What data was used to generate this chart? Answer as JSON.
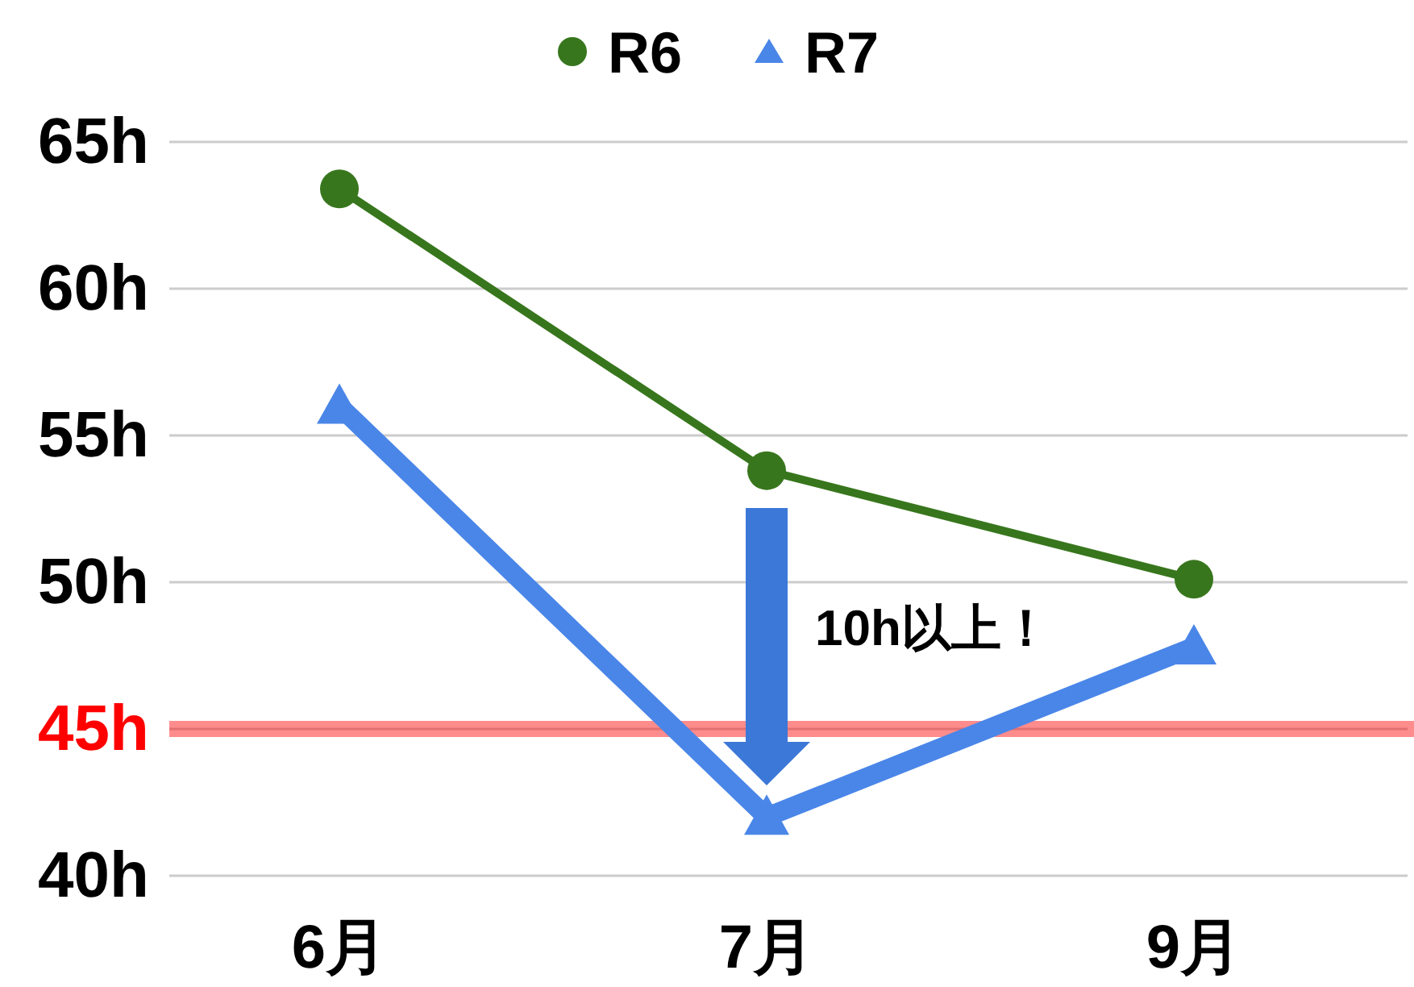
{
  "chart_data": {
    "type": "line",
    "categories": [
      "6月",
      "7月",
      "9月"
    ],
    "series": [
      {
        "name": "R6",
        "color": "#38761d",
        "marker": "circle",
        "values": [
          63.4,
          53.8,
          50.1
        ]
      },
      {
        "name": "R7",
        "color": "#4a86e8",
        "marker": "triangle",
        "values": [
          56.0,
          42.0,
          47.8
        ]
      }
    ],
    "ylim": [
      40,
      65
    ],
    "yticks": [
      {
        "value": 40,
        "label": "40h"
      },
      {
        "value": 45,
        "label": "45h"
      },
      {
        "value": 50,
        "label": "50h"
      },
      {
        "value": 55,
        "label": "55h"
      },
      {
        "value": 60,
        "label": "60h"
      },
      {
        "value": 65,
        "label": "65h"
      }
    ],
    "ref_lines": [
      {
        "axis": "y",
        "value": 45,
        "color": "#ff0000"
      }
    ],
    "annotations": [
      "10h以上！"
    ],
    "grid": "y",
    "legend": "top"
  }
}
